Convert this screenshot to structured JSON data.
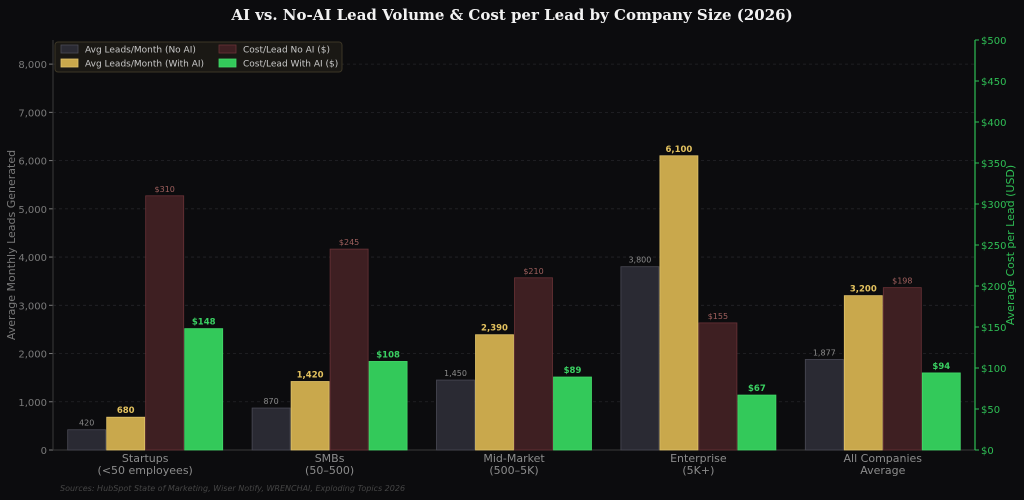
{
  "chart_data": {
    "type": "bar",
    "title": "AI vs. No-AI Lead Volume & Cost per Lead by Company Size (2026)",
    "ylabel_left": "Average Monthly Leads Generated",
    "ylabel_right": "Average Cost per Lead (USD)",
    "xlabel": "",
    "ylim_left": [
      0,
      8500
    ],
    "ylim_right": [
      0,
      500
    ],
    "yticks_left": [
      0,
      1000,
      2000,
      3000,
      4000,
      5000,
      6000,
      7000,
      8000
    ],
    "yticks_left_labels": [
      "0",
      "1,000",
      "2,000",
      "3,000",
      "4,000",
      "5,000",
      "6,000",
      "7,000",
      "8,000"
    ],
    "yticks_right": [
      0,
      50,
      100,
      150,
      200,
      250,
      300,
      350,
      400,
      450,
      500
    ],
    "yticks_right_labels": [
      "$0",
      "$50",
      "$100",
      "$150",
      "$200",
      "$250",
      "$300",
      "$350",
      "$400",
      "$450",
      "$500"
    ],
    "grid": "horizontal-dashed",
    "legend_position": "top-left",
    "categories": [
      [
        "Startups",
        "(<50 employees)"
      ],
      [
        "SMBs",
        "(50–500)"
      ],
      [
        "Mid-Market",
        "(500–5K)"
      ],
      [
        "Enterprise",
        "(5K+)"
      ],
      [
        "All Companies",
        "Average"
      ]
    ],
    "series": [
      {
        "name": "Avg Leads/Month (No AI)",
        "axis": "left",
        "color": "#2a2a33",
        "edge": "#4a4a55",
        "label_color": "#8a8a8a",
        "label_bold": false,
        "values": [
          420,
          870,
          1450,
          3800,
          1877
        ],
        "labels": [
          "420",
          "870",
          "1,450",
          "3,800",
          "1,877"
        ]
      },
      {
        "name": "Avg Leads/Month (With AI)",
        "axis": "left",
        "color": "#c9a84c",
        "edge": "#e0c269",
        "label_color": "#e3c25f",
        "label_bold": true,
        "values": [
          680,
          1420,
          2390,
          6100,
          3200
        ],
        "labels": [
          "680",
          "1,420",
          "2,390",
          "6,100",
          "3,200"
        ]
      },
      {
        "name": "Cost/Lead No AI ($)",
        "axis": "right",
        "color": "#3e1f22",
        "edge": "#6a3236",
        "label_color": "#a0605e",
        "label_bold": false,
        "values": [
          310,
          245,
          210,
          155,
          198
        ],
        "labels": [
          "$310",
          "$245",
          "$210",
          "$155",
          "$198"
        ]
      },
      {
        "name": "Cost/Lead With AI ($)",
        "axis": "right",
        "color": "#33c95a",
        "edge": "#44d96a",
        "label_color": "#3ad062",
        "label_bold": true,
        "values": [
          148,
          108,
          89,
          67,
          94
        ],
        "labels": [
          "$148",
          "$108",
          "$89",
          "$67",
          "$94"
        ]
      }
    ],
    "source_note": "Sources: HubSpot State of Marketing, Wiser Notify, WRENCHAI, Exploding Topics 2026"
  },
  "colors": {
    "background": "#0c0c0e",
    "title": "#f2f2f2",
    "left_axis_text": "#7a7a7a",
    "right_axis": "#2fbf55",
    "category_text": "#8c8c8c",
    "grid": "#242428",
    "legend_bg": "#1a1814",
    "legend_border": "#3c3626",
    "legend_text": "#c8c8c8",
    "source_text": "#454545"
  }
}
